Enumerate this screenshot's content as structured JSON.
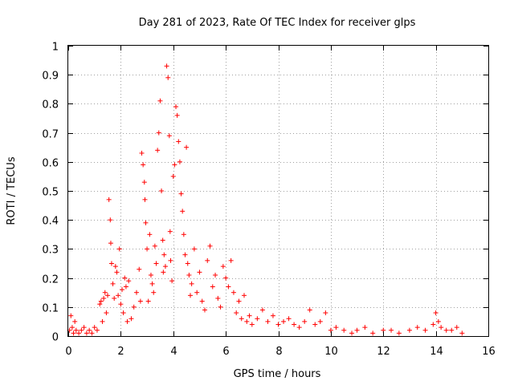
{
  "chart_data": {
    "type": "scatter",
    "title": "Day 281 of 2023, Rate Of TEC Index for receiver glps",
    "xlabel": "GPS time / hours",
    "ylabel": "ROTI / TECUs",
    "xlim": [
      0,
      16
    ],
    "ylim": [
      0,
      1
    ],
    "xticks": [
      "0",
      "2",
      "4",
      "6",
      "8",
      "10",
      "12",
      "14",
      "16"
    ],
    "yticks": [
      "0",
      "0.1",
      "0.2",
      "0.3",
      "0.4",
      "0.5",
      "0.6",
      "0.7",
      "0.8",
      "0.9",
      "1"
    ],
    "grid": true,
    "marker": "+",
    "color": "#ff0000",
    "series": [
      {
        "name": "ROTI",
        "x": [
          0.05,
          0.1,
          0.15,
          0.2,
          0.25,
          0.3,
          0.4,
          0.5,
          0.6,
          0.7,
          0.8,
          0.9,
          1.0,
          1.1,
          1.2,
          1.25,
          1.3,
          1.35,
          1.4,
          1.45,
          1.5,
          1.55,
          1.6,
          1.62,
          1.65,
          1.7,
          1.75,
          1.8,
          1.85,
          1.9,
          1.95,
          2.0,
          2.05,
          2.1,
          2.15,
          2.2,
          2.25,
          2.3,
          2.4,
          2.5,
          2.6,
          2.7,
          2.75,
          2.8,
          2.85,
          2.9,
          2.92,
          2.95,
          3.0,
          3.05,
          3.1,
          3.15,
          3.2,
          3.25,
          3.3,
          3.35,
          3.4,
          3.45,
          3.5,
          3.55,
          3.6,
          3.62,
          3.65,
          3.7,
          3.75,
          3.8,
          3.85,
          3.88,
          3.9,
          3.95,
          4.0,
          4.05,
          4.1,
          4.15,
          4.2,
          4.25,
          4.3,
          4.35,
          4.4,
          4.45,
          4.5,
          4.55,
          4.6,
          4.65,
          4.7,
          4.8,
          4.9,
          5.0,
          5.1,
          5.2,
          5.3,
          5.4,
          5.5,
          5.6,
          5.7,
          5.8,
          5.9,
          6.0,
          6.1,
          6.2,
          6.3,
          6.4,
          6.5,
          6.6,
          6.7,
          6.8,
          6.9,
          7.0,
          7.2,
          7.4,
          7.6,
          7.8,
          8.0,
          8.2,
          8.4,
          8.6,
          8.8,
          9.0,
          9.2,
          9.4,
          9.6,
          9.8,
          10.0,
          10.2,
          10.5,
          10.8,
          11.0,
          11.3,
          11.6,
          12.0,
          12.3,
          12.6,
          13.0,
          13.3,
          13.6,
          13.9,
          14.0,
          14.1,
          14.2,
          14.4,
          14.6,
          14.8,
          15.0
        ],
        "y": [
          0.02,
          0.07,
          0.03,
          0.01,
          0.05,
          0.02,
          0.01,
          0.02,
          0.03,
          0.01,
          0.02,
          0.01,
          0.03,
          0.02,
          0.11,
          0.12,
          0.05,
          0.13,
          0.15,
          0.08,
          0.14,
          0.47,
          0.4,
          0.32,
          0.25,
          0.18,
          0.13,
          0.24,
          0.22,
          0.14,
          0.3,
          0.11,
          0.16,
          0.08,
          0.2,
          0.17,
          0.05,
          0.19,
          0.06,
          0.1,
          0.15,
          0.23,
          0.12,
          0.63,
          0.59,
          0.53,
          0.47,
          0.39,
          0.3,
          0.12,
          0.35,
          0.21,
          0.18,
          0.15,
          0.31,
          0.25,
          0.64,
          0.7,
          0.81,
          0.5,
          0.33,
          0.22,
          0.28,
          0.24,
          0.93,
          0.89,
          0.69,
          0.36,
          0.26,
          0.19,
          0.55,
          0.59,
          0.79,
          0.76,
          0.67,
          0.6,
          0.49,
          0.43,
          0.35,
          0.28,
          0.65,
          0.25,
          0.21,
          0.14,
          0.18,
          0.3,
          0.15,
          0.22,
          0.12,
          0.09,
          0.26,
          0.31,
          0.17,
          0.21,
          0.13,
          0.1,
          0.24,
          0.2,
          0.17,
          0.26,
          0.15,
          0.08,
          0.12,
          0.06,
          0.14,
          0.05,
          0.07,
          0.04,
          0.06,
          0.09,
          0.05,
          0.07,
          0.04,
          0.05,
          0.06,
          0.04,
          0.03,
          0.05,
          0.09,
          0.04,
          0.05,
          0.08,
          0.02,
          0.03,
          0.02,
          0.01,
          0.02,
          0.03,
          0.01,
          0.02,
          0.02,
          0.01,
          0.02,
          0.03,
          0.02,
          0.04,
          0.08,
          0.05,
          0.03,
          0.02,
          0.02,
          0.03,
          0.01
        ]
      }
    ]
  }
}
